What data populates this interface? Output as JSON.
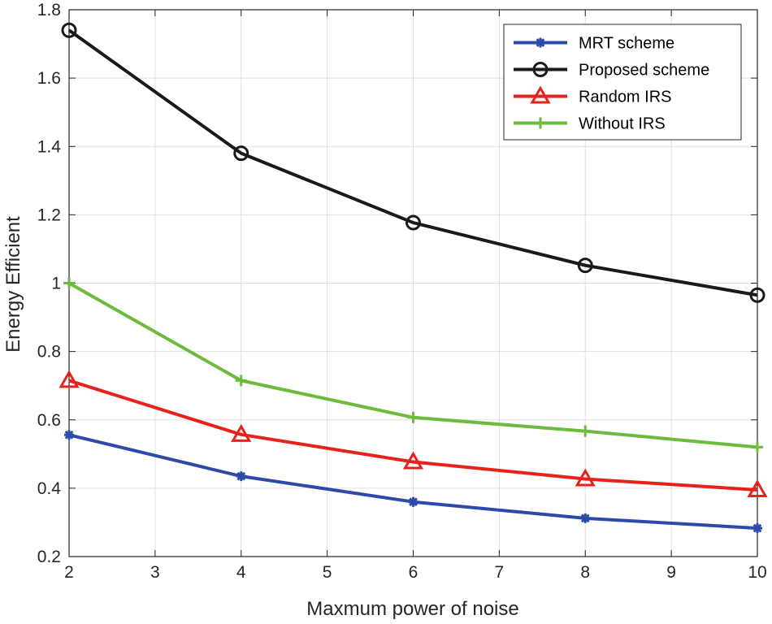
{
  "chart_data": {
    "type": "line",
    "title": "",
    "xlabel": "Maxmum power of noise",
    "ylabel": "Energy Efficient",
    "xlim": [
      2,
      10
    ],
    "ylim": [
      0.2,
      1.8
    ],
    "xticks": [
      2,
      3,
      4,
      5,
      6,
      7,
      8,
      9,
      10
    ],
    "xtick_labels": [
      "2",
      "3",
      "4",
      "5",
      "6",
      "7",
      "8",
      "9",
      "10"
    ],
    "yticks": [
      0.2,
      0.4,
      0.6,
      0.8,
      1.0,
      1.2,
      1.4,
      1.6,
      1.8
    ],
    "ytick_labels": [
      "0.2",
      "0.4",
      "0.6",
      "0.8",
      "1",
      "1.2",
      "1.4",
      "1.6",
      "1.8"
    ],
    "grid": true,
    "legend_position": "top-right",
    "x": [
      2,
      4,
      6,
      8,
      10
    ],
    "series": [
      {
        "name": "MRT scheme",
        "color": "#2e4aa8",
        "marker": "asterisk",
        "values": [
          0.556,
          0.435,
          0.36,
          0.312,
          0.283
        ]
      },
      {
        "name": "Proposed scheme",
        "color": "#1a1a1a",
        "marker": "circle",
        "values": [
          1.74,
          1.38,
          1.177,
          1.052,
          0.965
        ]
      },
      {
        "name": "Random IRS",
        "color": "#e8211b",
        "marker": "triangle",
        "values": [
          0.715,
          0.557,
          0.477,
          0.427,
          0.395
        ]
      },
      {
        "name": "Without IRS",
        "color": "#6cbb3c",
        "marker": "plus",
        "values": [
          1.0,
          0.715,
          0.607,
          0.567,
          0.52
        ]
      }
    ]
  }
}
